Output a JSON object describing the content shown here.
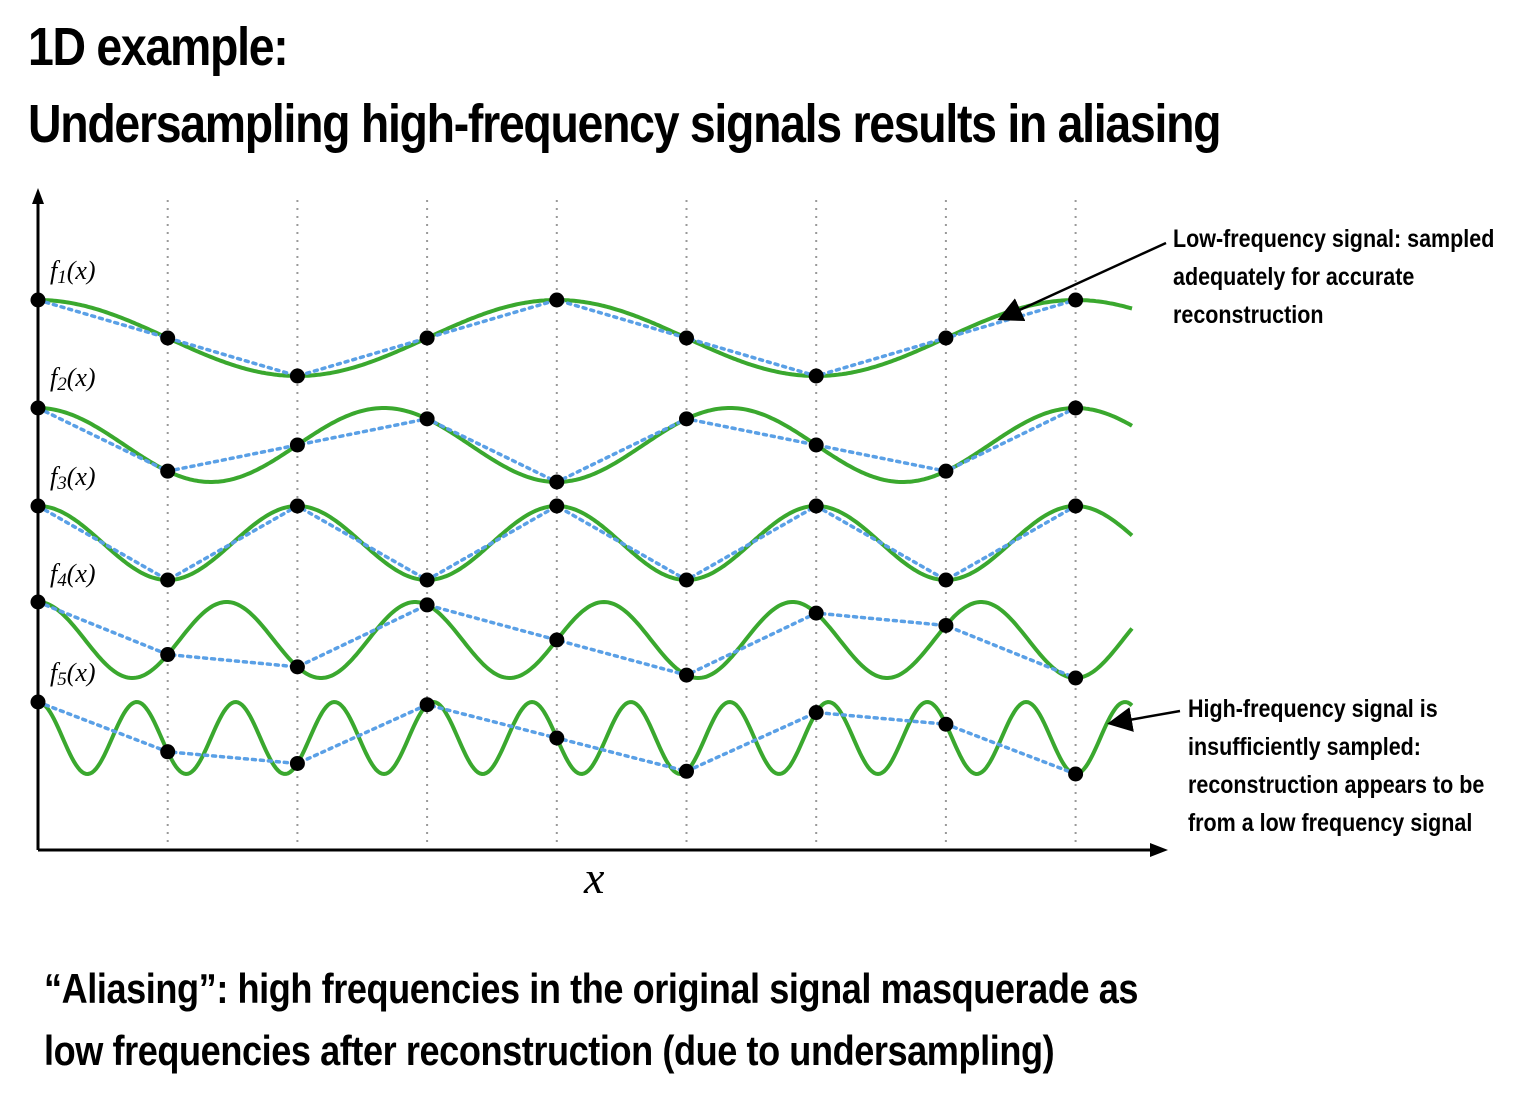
{
  "slide": {
    "title_line1": "1D example:",
    "title_line2": "Undersampling high-frequency signals results in aliasing",
    "caption_line1": "“Aliasing”: high frequencies in the original signal masquerade as",
    "caption_line2": "low frequencies after reconstruction (due to undersampling)"
  },
  "annotations": {
    "low_frequency": [
      "Low-frequency signal: sampled",
      "adequately for accurate",
      "reconstruction"
    ],
    "high_frequency": [
      "High-frequency signal is",
      "insufficiently sampled:",
      "reconstruction appears to be",
      "from a low frequency signal"
    ]
  },
  "axis": {
    "x_label": "x"
  },
  "colors": {
    "signal": "#3aa82e",
    "reconstruction": "#5aa0e6",
    "sample": "#000000",
    "gridline": "#999999"
  },
  "signals": [
    {
      "label": "f1(x)",
      "name": "f",
      "subscript": "1",
      "arg": "(x)",
      "cycles": 2.0
    },
    {
      "label": "f2(x)",
      "name": "f",
      "subscript": "2",
      "arg": "(x)",
      "cycles": 3.0
    },
    {
      "label": "f3(x)",
      "name": "f",
      "subscript": "3",
      "arg": "(x)",
      "cycles": 4.0
    },
    {
      "label": "f4(x)",
      "name": "f",
      "subscript": "4",
      "arg": "(x)",
      "cycles": 5.5
    },
    {
      "label": "f5(x)",
      "name": "f",
      "subscript": "5",
      "arg": "(x)",
      "cycles": 10.5
    }
  ],
  "sample_count": 9
}
